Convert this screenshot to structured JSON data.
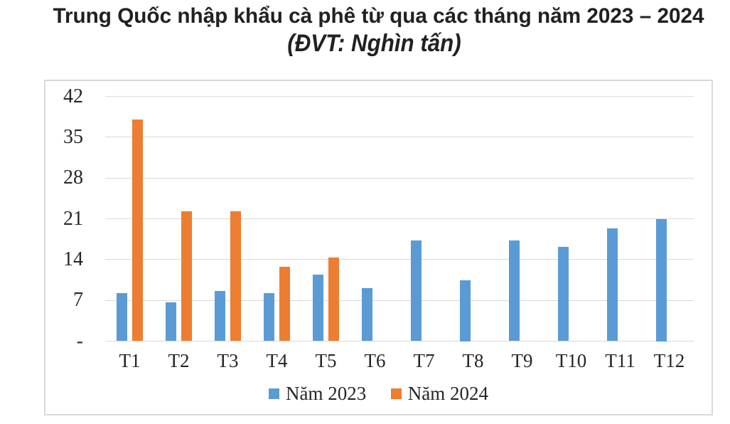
{
  "title": "Trung Quốc nhập khẩu cà phê từ qua các tháng năm 2023 – 2024",
  "subtitle": "(ĐVT: Nghìn tấn)",
  "chart_data": {
    "type": "bar",
    "categories": [
      "T1",
      "T2",
      "T3",
      "T4",
      "T5",
      "T6",
      "T7",
      "T8",
      "T9",
      "T10",
      "T11",
      "T12"
    ],
    "series": [
      {
        "name": "Năm 2023",
        "color": "#5B9BD5",
        "values": [
          8.3,
          6.6,
          8.6,
          8.3,
          11.4,
          9.1,
          17.3,
          10.5,
          17.3,
          16.2,
          19.4,
          21.0
        ]
      },
      {
        "name": "Năm 2024",
        "color": "#ED7D31",
        "values": [
          38.0,
          22.3,
          22.3,
          12.8,
          14.3,
          null,
          null,
          null,
          null,
          null,
          null,
          null
        ]
      }
    ],
    "ylim": [
      0,
      42
    ],
    "ytick_step": 7,
    "ytick_labels": [
      "-",
      "7",
      "14",
      "21",
      "28",
      "35",
      "42"
    ],
    "grid": true,
    "legend_position": "bottom"
  },
  "colors": {
    "grid": "#D9D9D9",
    "border": "#D9D9D9",
    "text": "#262626",
    "title": "#212124"
  }
}
